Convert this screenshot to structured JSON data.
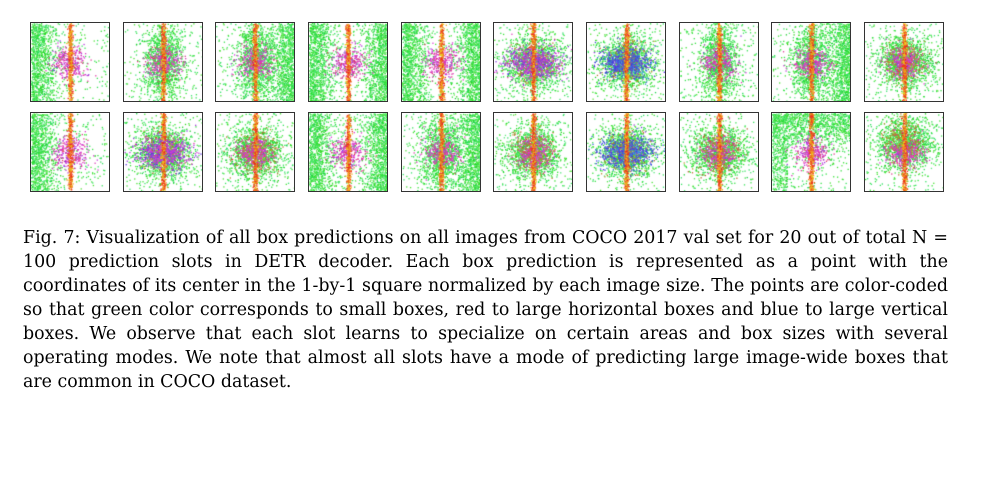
{
  "figure": {
    "label": "Fig. 7:",
    "caption_text": "Visualization of all box predictions on all images from COCO 2017 val set for 20 out of total N = 100 prediction slots in DETR decoder. Each box prediction is represented as a point with the coordinates of its center in the 1-by-1 square normalized by each image size. The points are color-coded so that green color corresponds to small boxes, red to large horizontal boxes and blue to large vertical boxes. We observe that each slot learns to specialize on certain areas and box sizes with several operating modes. We note that almost all slots have a mode of predicting large image-wide boxes that are common in COCO dataset.",
    "panel_count": 20,
    "rows": 2,
    "columns": 10,
    "colors": {
      "small_boxes": "#3ccc3c",
      "large_horizontal": "#e0303c",
      "large_vertical": "#5a5aee",
      "border": "#333333"
    }
  },
  "panels": [
    {
      "id": 1,
      "mode": "left-green"
    },
    {
      "id": 2,
      "mode": "center-column"
    },
    {
      "id": 3,
      "mode": "right-green"
    },
    {
      "id": 4,
      "mode": "two-sided"
    },
    {
      "id": 5,
      "mode": "left-right"
    },
    {
      "id": 6,
      "mode": "center-purple"
    },
    {
      "id": 7,
      "mode": "center-blue"
    },
    {
      "id": 8,
      "mode": "center-column"
    },
    {
      "id": 9,
      "mode": "right-green"
    },
    {
      "id": 10,
      "mode": "center-blob"
    },
    {
      "id": 11,
      "mode": "left-green"
    },
    {
      "id": 12,
      "mode": "center-purple"
    },
    {
      "id": 13,
      "mode": "center-blob"
    },
    {
      "id": 14,
      "mode": "two-sided"
    },
    {
      "id": 15,
      "mode": "right-green"
    },
    {
      "id": 16,
      "mode": "center-blob"
    },
    {
      "id": 17,
      "mode": "center-blue"
    },
    {
      "id": 18,
      "mode": "center-blob"
    },
    {
      "id": 19,
      "mode": "top-green"
    },
    {
      "id": 20,
      "mode": "upper-blob"
    }
  ]
}
